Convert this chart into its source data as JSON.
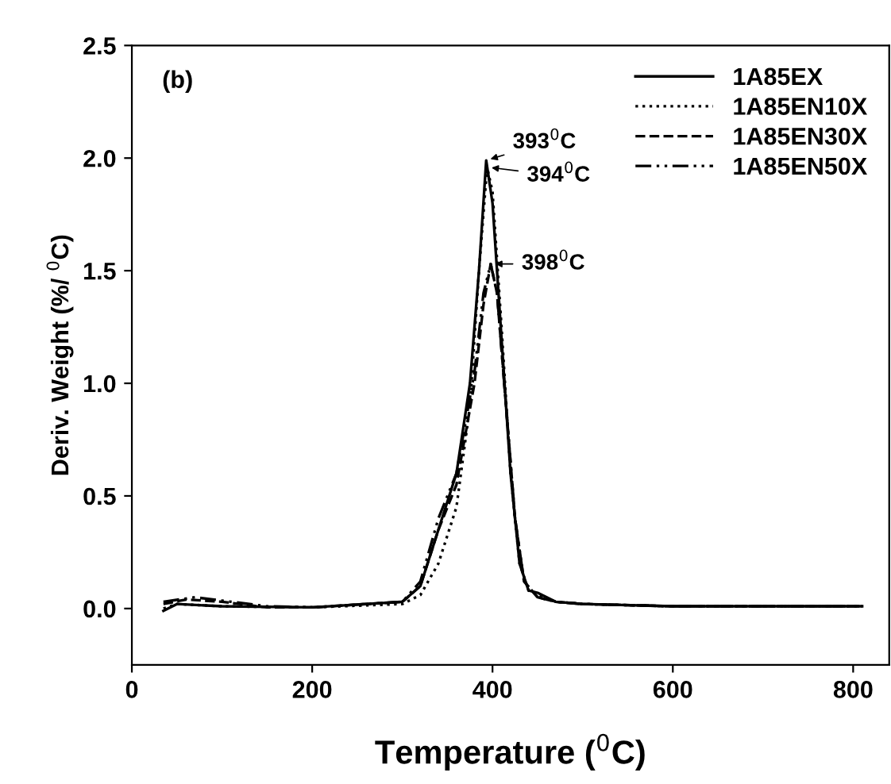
{
  "chart_data": {
    "type": "line",
    "title": "(b)",
    "xlabel": "Temperature ($^{0}$C)",
    "ylabel": "Deriv. Weight (%/ $^{0}$C)",
    "xlim": [
      0,
      840
    ],
    "xticks": [
      0,
      200,
      400,
      600,
      800
    ],
    "ylim": [
      -0.25,
      2.5
    ],
    "yticks": [
      {
        "value": 0,
        "label": "0.0"
      },
      {
        "value": 0.5,
        "label": "0.5"
      },
      {
        "value": 1,
        "label": "1.0"
      },
      {
        "value": 1.5,
        "label": "1.5"
      },
      {
        "value": 2,
        "label": "2.0"
      },
      {
        "value": 2.5,
        "label": "2.5"
      }
    ],
    "legend": "top right",
    "grid": false,
    "series": [
      {
        "name": "1A85EX",
        "color": "#000000",
        "line_style": "solid",
        "x": [
          35,
          50,
          100,
          200,
          300,
          320,
          340,
          360,
          375,
          385,
          393,
          400,
          410,
          420,
          430,
          440,
          450,
          470,
          500,
          600,
          810
        ],
        "values": [
          -0.01,
          0.02,
          0.01,
          0.005,
          0.03,
          0.1,
          0.35,
          0.6,
          1.0,
          1.5,
          1.99,
          1.8,
          1.2,
          0.6,
          0.2,
          0.08,
          0.07,
          0.03,
          0.02,
          0.01,
          0.01
        ]
      },
      {
        "name": "1A85EN10X",
        "color": "#000000",
        "line_style": "dotted",
        "x": [
          35,
          50,
          100,
          200,
          300,
          320,
          340,
          360,
          375,
          385,
          394,
          400,
          410,
          420,
          430,
          440,
          450,
          470,
          500,
          600,
          810
        ],
        "values": [
          0.0,
          0.02,
          0.01,
          0.005,
          0.02,
          0.06,
          0.2,
          0.45,
          0.9,
          1.5,
          1.96,
          1.85,
          1.25,
          0.6,
          0.2,
          0.08,
          0.06,
          0.03,
          0.02,
          0.01,
          0.01
        ]
      },
      {
        "name": "1A85EN30X",
        "color": "#000000",
        "line_style": "dashed",
        "x": [
          35,
          60,
          100,
          150,
          200,
          300,
          320,
          340,
          360,
          380,
          390,
          398,
          405,
          415,
          425,
          435,
          450,
          470,
          500,
          600,
          810
        ],
        "values": [
          0.02,
          0.04,
          0.03,
          0.005,
          0.005,
          0.03,
          0.1,
          0.35,
          0.55,
          1.0,
          1.35,
          1.53,
          1.4,
          0.9,
          0.4,
          0.12,
          0.05,
          0.03,
          0.02,
          0.01,
          0.01
        ]
      },
      {
        "name": "1A85EN50X",
        "color": "#000000",
        "line_style": "dashdot",
        "x": [
          35,
          70,
          100,
          150,
          200,
          300,
          320,
          340,
          360,
          380,
          390,
          398,
          405,
          415,
          425,
          435,
          450,
          470,
          500,
          600,
          810
        ],
        "values": [
          0.03,
          0.05,
          0.035,
          0.01,
          0.005,
          0.03,
          0.12,
          0.4,
          0.6,
          1.05,
          1.4,
          1.53,
          1.4,
          0.9,
          0.4,
          0.12,
          0.05,
          0.03,
          0.02,
          0.01,
          0.01
        ]
      }
    ],
    "annotations": [
      {
        "text": "393$^{0}$C",
        "x": 393,
        "y": 1.99
      },
      {
        "text": "394$^{0}$C",
        "x": 394,
        "y": 1.96
      },
      {
        "text": "398$^{0}$C",
        "x": 398,
        "y": 1.53
      }
    ]
  }
}
